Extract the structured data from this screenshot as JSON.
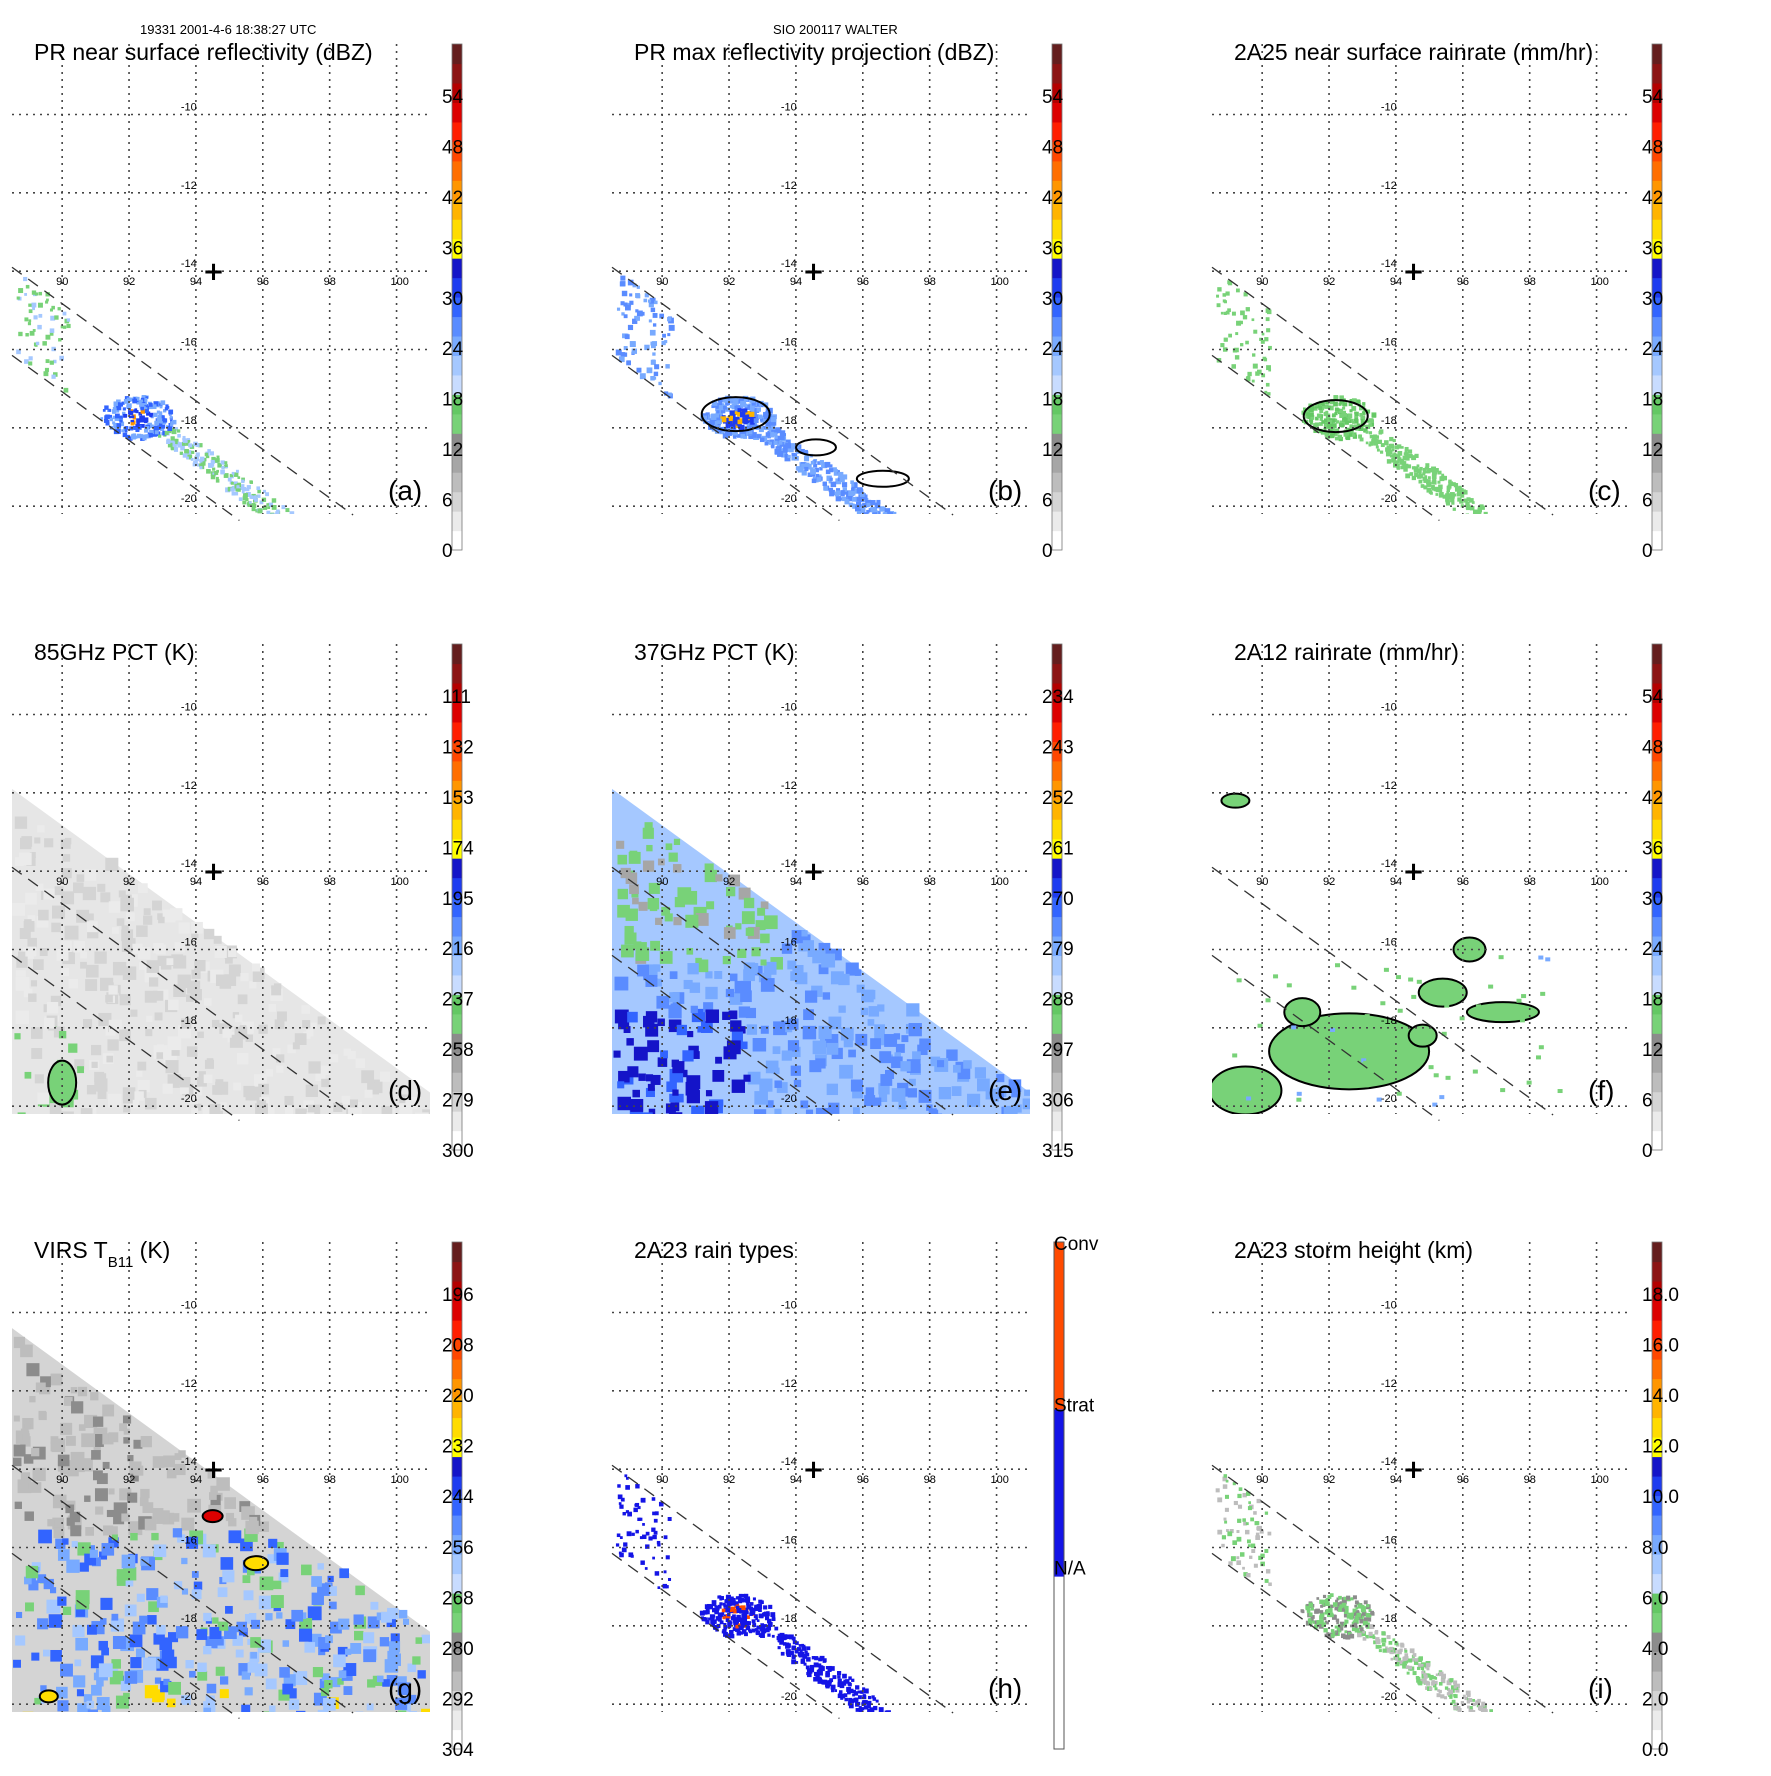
{
  "header": {
    "left": "19331 2001-4-6 18:38:27 UTC",
    "center": "SIO 200117 WALTER"
  },
  "map": {
    "lon_labels": [
      "90",
      "92",
      "94",
      "96",
      "98",
      "100"
    ],
    "lat_labels": [
      "-10",
      "-12",
      "-14",
      "-16",
      "-18",
      "-20"
    ],
    "lon_range": [
      88.5,
      101.0
    ],
    "lat_range": [
      -8.2,
      -20.2
    ],
    "center_marker": {
      "symbol": "+",
      "lon": 94.5,
      "lat": -14.0
    }
  },
  "colors": {
    "scale": [
      "#ffffff",
      "#ebebeb",
      "#d4d4d4",
      "#bdbdbd",
      "#a6a6a6",
      "#8c8c8c",
      "#78d278",
      "#64c864",
      "#c8dcff",
      "#a5c8ff",
      "#78aaff",
      "#5a8cff",
      "#3264ff",
      "#1e3cf0",
      "#1414c8",
      "#ffff00",
      "#ffdc00",
      "#ffb400",
      "#ff9600",
      "#ff6e00",
      "#ff4600",
      "#ff1e00",
      "#dc0000",
      "#b40000",
      "#8c1414",
      "#641e1e"
    ],
    "raintype": [
      "#ffffff",
      "#1414e6",
      "#ff4a00"
    ],
    "contour": "#000000",
    "grid": "#444444"
  },
  "chart_data": [
    {
      "id": "a",
      "type": "heatmap",
      "title": "PR near surface reflectivity (dBZ)",
      "label": "(a)",
      "colorbar": {
        "ticks": [
          "0",
          "6",
          "12",
          "18",
          "24",
          "30",
          "36",
          "42",
          "48",
          "54"
        ],
        "range": [
          0,
          60
        ],
        "units": "dBZ"
      },
      "field": "pr_near_surface"
    },
    {
      "id": "b",
      "type": "heatmap",
      "title": "PR max reflectivity projection (dBZ)",
      "label": "(b)",
      "colorbar": {
        "ticks": [
          "0",
          "6",
          "12",
          "18",
          "24",
          "30",
          "36",
          "42",
          "48",
          "54"
        ],
        "range": [
          0,
          60
        ],
        "units": "dBZ"
      },
      "field": "pr_max_projection"
    },
    {
      "id": "c",
      "type": "heatmap",
      "title": "2A25 near surface rainrate (mm/hr)",
      "label": "(c)",
      "colorbar": {
        "ticks": [
          "0",
          "6",
          "12",
          "18",
          "24",
          "30",
          "36",
          "42",
          "48",
          "54"
        ],
        "range": [
          0,
          60
        ],
        "units": "mm/hr"
      },
      "field": "rain_2a25"
    },
    {
      "id": "d",
      "type": "heatmap",
      "title": "85GHz PCT (K)",
      "label": "(d)",
      "colorbar": {
        "ticks": [
          "300",
          "279",
          "258",
          "237",
          "216",
          "195",
          "174",
          "153",
          "132",
          "111"
        ],
        "range": [
          300,
          90
        ],
        "units": "K"
      },
      "field": "pct85"
    },
    {
      "id": "e",
      "type": "heatmap",
      "title": "37GHz PCT (K)",
      "label": "(e)",
      "colorbar": {
        "ticks": [
          "315",
          "306",
          "297",
          "288",
          "279",
          "270",
          "261",
          "252",
          "243",
          "234"
        ],
        "range": [
          315,
          225
        ],
        "units": "K"
      },
      "field": "pct37"
    },
    {
      "id": "f",
      "type": "heatmap",
      "title": "2A12 rainrate (mm/hr)",
      "label": "(f)",
      "colorbar": {
        "ticks": [
          "0",
          "6",
          "12",
          "18",
          "24",
          "30",
          "36",
          "42",
          "48",
          "54"
        ],
        "range": [
          0,
          60
        ],
        "units": "mm/hr"
      },
      "field": "rain_2a12"
    },
    {
      "id": "g",
      "type": "heatmap",
      "title_main": "VIRS T",
      "title_sub": "B11",
      "title_units": " (K)",
      "label": "(g)",
      "colorbar": {
        "ticks": [
          "304",
          "292",
          "280",
          "268",
          "256",
          "244",
          "232",
          "220",
          "208",
          "196"
        ],
        "range": [
          304,
          184
        ],
        "units": "K"
      },
      "field": "virs"
    },
    {
      "id": "h",
      "type": "heatmap",
      "title": "2A23 rain types",
      "label": "(h)",
      "colorbar": {
        "categorical": true,
        "ticks": [
          "N/A",
          "Strat",
          "Conv"
        ]
      },
      "field": "raintype"
    },
    {
      "id": "i",
      "type": "heatmap",
      "title": "2A23 storm height (km)",
      "label": "(i)",
      "colorbar": {
        "ticks": [
          "0.0",
          "2.0",
          "4.0",
          "6.0",
          "8.0",
          "10.0",
          "12.0",
          "14.0",
          "16.0",
          "18.0"
        ],
        "range": [
          0,
          20
        ],
        "units": "km"
      },
      "field": "storm_height"
    }
  ]
}
